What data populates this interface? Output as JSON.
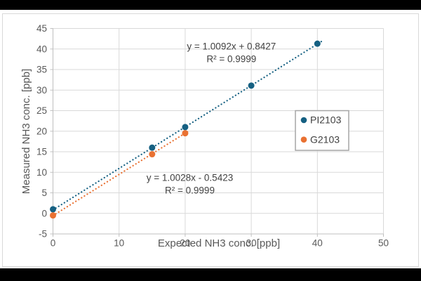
{
  "chart_data": {
    "type": "scatter",
    "title": "",
    "xlabel": "Expected NH3 conc. [ppb]",
    "ylabel": "Measured NH3 conc. [ppb]",
    "xlim": [
      0,
      50
    ],
    "ylim": [
      -5,
      45
    ],
    "x_ticks": [
      0,
      10,
      20,
      30,
      40,
      50
    ],
    "y_ticks": [
      -5,
      0,
      5,
      10,
      15,
      20,
      25,
      30,
      35,
      40,
      45
    ],
    "grid": true,
    "legend_position": "inside-right",
    "series": [
      {
        "name": "PI2103",
        "color": "#156082",
        "marker": "circle",
        "x": [
          0,
          15,
          20,
          30,
          40
        ],
        "y": [
          1.0,
          16.0,
          21.0,
          31.1,
          41.3
        ],
        "trendline": {
          "style": "dotted",
          "slope": 1.0092,
          "intercept": 0.8427,
          "x_range": [
            0,
            40.9
          ],
          "equation": "y = 1.0092x + 0.8427",
          "r_squared": "R² = 0.9999",
          "label_anchor": {
            "x": 27.0,
            "y": 40.6
          }
        }
      },
      {
        "name": "G2103",
        "color": "#E97132",
        "marker": "circle",
        "x": [
          0,
          15,
          20
        ],
        "y": [
          -0.5,
          14.4,
          19.5
        ],
        "trendline": {
          "style": "dotted",
          "slope": 1.0028,
          "intercept": -0.5423,
          "x_range": [
            0,
            20.7
          ],
          "equation": "y = 1.0028x - 0.5423",
          "r_squared": "R² = 0.9999",
          "label_anchor": {
            "x": 20.7,
            "y": 8.7
          }
        }
      }
    ],
    "colors": {
      "frame": "#000000",
      "plot_background": "#FFFFFF",
      "chart_border": "#D9D9D9",
      "gridline": "#D9D9D9",
      "axis_line": "#BFBFBF",
      "tick_text": "#595959",
      "equation_text": "#404040",
      "legend_border": "#A6A6A6",
      "legend_text": "#404040"
    }
  }
}
